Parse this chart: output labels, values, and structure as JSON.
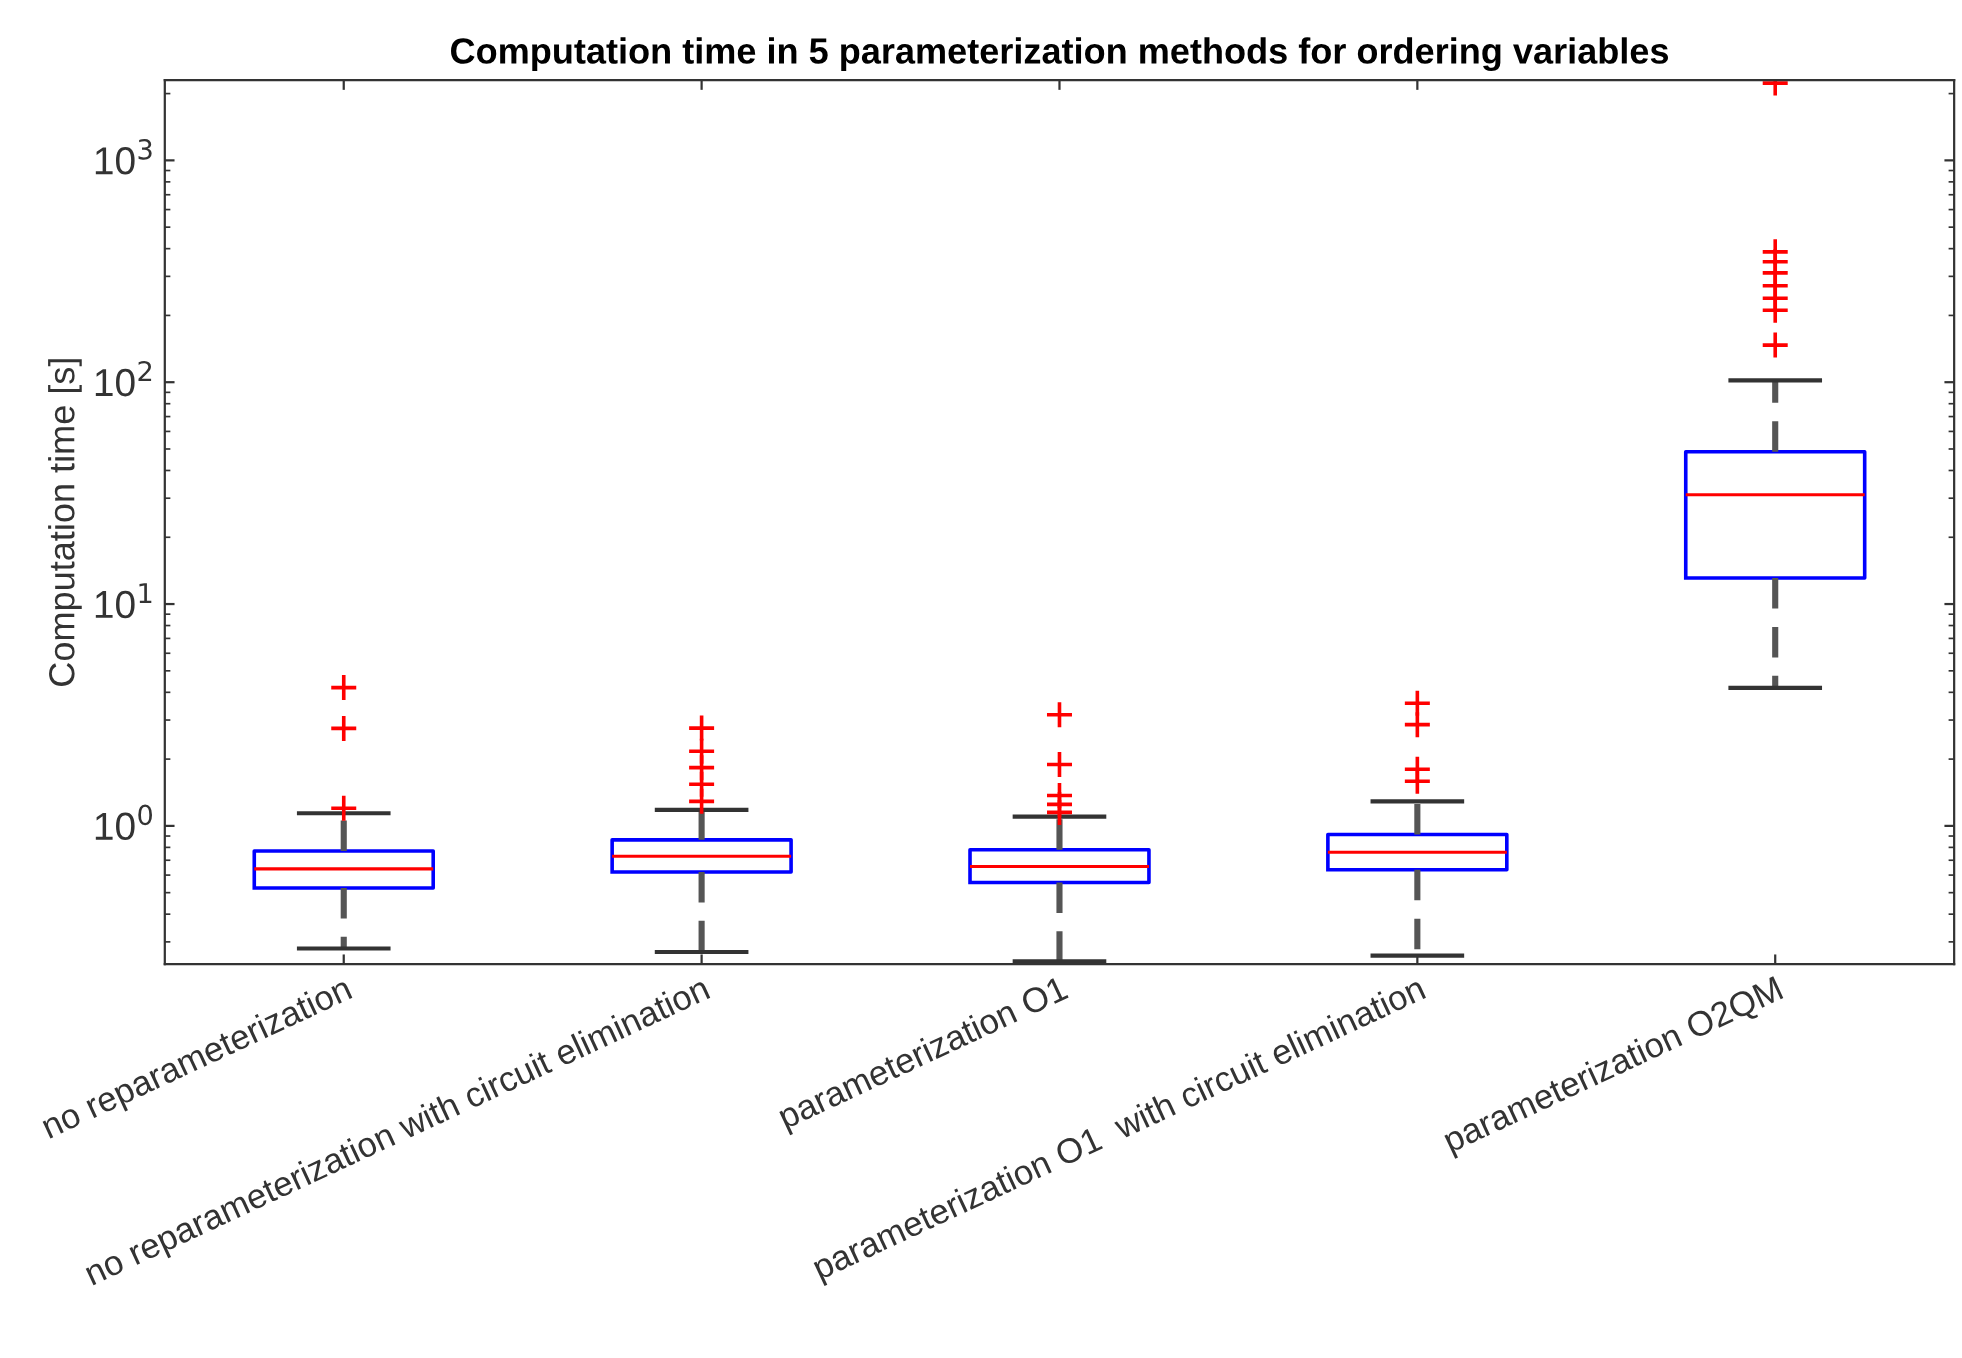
{
  "chart_data": {
    "type": "box",
    "title": "Computation time in 5 parameterization methods for ordering variables",
    "ylabel": "Computation time [s]",
    "categories": [
      "no reparameterization",
      "no reparameterization with circuit elimination",
      "parameterization O1",
      "parameterization O1  with circuit elimination",
      "parameterization O2QM"
    ],
    "log": true,
    "ylim": [
      0.238,
      2300
    ],
    "yticks": [
      {
        "value": 1,
        "label": "10$^{0}$"
      },
      {
        "value": 10,
        "label": "10$^{1}$"
      },
      {
        "value": 100,
        "label": "10$^{2}$"
      },
      {
        "value": 1000,
        "label": "10$^{3}$"
      }
    ],
    "grid": false,
    "legend": false,
    "marker": "cross",
    "series": [
      {
        "color": "#0000ff",
        "boxes": [
          {
            "low": 0.28,
            "q1": 0.525,
            "median": 0.64,
            "q3": 0.77,
            "high": 1.14,
            "outliers": [
              4.2,
              2.75,
              1.2
            ]
          },
          {
            "low": 0.27,
            "q1": 0.62,
            "median": 0.73,
            "q3": 0.865,
            "high": 1.18,
            "outliers": [
              2.76,
              2.17,
              1.83,
              1.54,
              1.29
            ]
          },
          {
            "low": 0.245,
            "q1": 0.556,
            "median": 0.656,
            "q3": 0.78,
            "high": 1.1,
            "outliers": [
              3.17,
              1.89,
              1.37,
              1.25,
              1.15
            ]
          },
          {
            "low": 0.26,
            "q1": 0.634,
            "median": 0.76,
            "q3": 0.915,
            "high": 1.29,
            "outliers": [
              3.57,
              2.86,
              1.8,
              1.59
            ]
          },
          {
            "low": 4.19,
            "q1": 13.1,
            "median": 31.1,
            "q3": 48.6,
            "high": 102,
            "outliers": [
              2230,
              387,
              349,
              311,
              272,
              239,
              211,
              147
            ]
          }
        ]
      }
    ]
  }
}
